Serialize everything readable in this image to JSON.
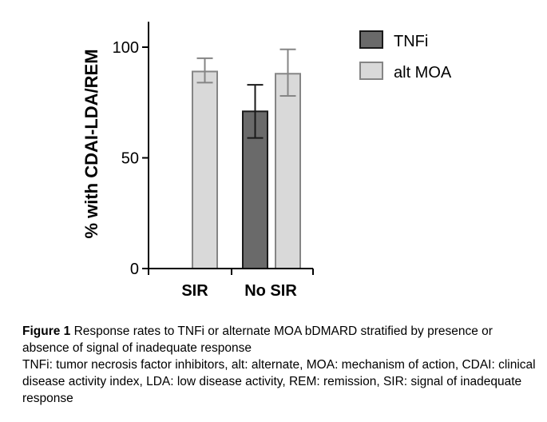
{
  "chart_data": {
    "type": "bar",
    "title": "",
    "xlabel": "",
    "ylabel": "% with CDAI-LDA/REM",
    "categories": [
      "SIR",
      "No SIR"
    ],
    "series": [
      {
        "name": "TNFi",
        "color": "#6a6a6a",
        "values": [
          null,
          71
        ],
        "err_low": [
          null,
          59
        ],
        "err_high": [
          null,
          83
        ]
      },
      {
        "name": "alt MOA",
        "color": "#d9d9d9",
        "values": [
          89,
          88
        ],
        "err_low": [
          84,
          78
        ],
        "err_high": [
          95,
          99
        ]
      }
    ],
    "ylim": [
      0,
      110
    ],
    "yticks": [
      0,
      50,
      100
    ],
    "legend_position": "top-right",
    "grid": false
  },
  "caption": {
    "label": "Figure 1",
    "title": " Response rates to TNFi or alternate MOA bDMARD stratified by presence or absence of signal of inadequate response",
    "note": "TNFi: tumor necrosis factor inhibitors, alt: alternate, MOA: mechanism of action, CDAI: clinical disease activity index, LDA: low disease activity, REM: remission, SIR: signal of inadequate response"
  }
}
